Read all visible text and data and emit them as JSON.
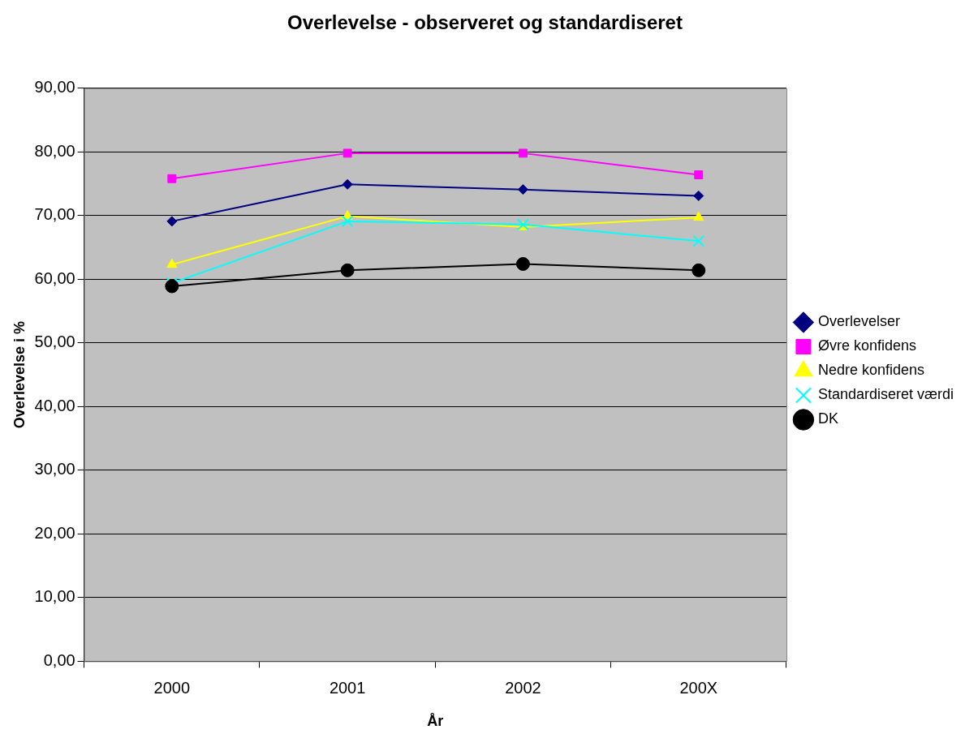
{
  "chart_data": {
    "type": "line",
    "title": "Overlevelse - observeret og standardiseret",
    "xlabel": "År",
    "ylabel": "Overlevelse i %",
    "categories": [
      "2000",
      "2001",
      "2002",
      "200X"
    ],
    "series": [
      {
        "name": "Overlevelser",
        "color": "#000080",
        "marker": "diamond",
        "values": [
          69.1,
          74.9,
          74.1,
          73.1
        ]
      },
      {
        "name": "Øvre konfidens",
        "color": "#ff00ff",
        "marker": "square",
        "values": [
          75.8,
          79.8,
          79.8,
          76.4
        ]
      },
      {
        "name": "Nedre konfidens",
        "color": "#ffff00",
        "marker": "triangle",
        "values": [
          62.3,
          69.9,
          68.2,
          69.7
        ]
      },
      {
        "name": "Standardiseret værdi",
        "color": "#00ffff",
        "marker": "cross",
        "values": [
          59.4,
          69.1,
          68.6,
          66.0
        ]
      },
      {
        "name": "DK",
        "color": "#000000",
        "marker": "circle",
        "values": [
          58.9,
          61.4,
          62.4,
          61.4
        ]
      }
    ],
    "ylim": [
      0,
      90
    ],
    "yticks": [
      {
        "value": 0,
        "label": "0,00"
      },
      {
        "value": 10,
        "label": "10,00"
      },
      {
        "value": 20,
        "label": "20,00"
      },
      {
        "value": 30,
        "label": "30,00"
      },
      {
        "value": 40,
        "label": "40,00"
      },
      {
        "value": 50,
        "label": "50,00"
      },
      {
        "value": 60,
        "label": "60,00"
      },
      {
        "value": 70,
        "label": "70,00"
      },
      {
        "value": 80,
        "label": "80,00"
      },
      {
        "value": 90,
        "label": "90,00"
      }
    ],
    "grid": "y",
    "legend": "right",
    "line_style": "solid"
  }
}
